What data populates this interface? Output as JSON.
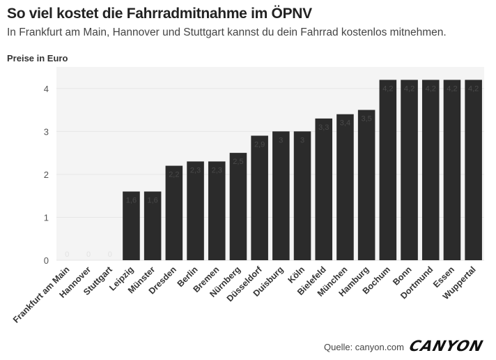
{
  "header": {
    "title": "So viel kostet die Fahrradmitnahme im ÖPNV",
    "subtitle": "In Frankfurt am Main, Hannover und Stuttgart kannst du dein Fahrrad kostenlos mitnehmen."
  },
  "footer": {
    "source": "Quelle: canyon.com",
    "logo_text": "CANYON"
  },
  "chart_data": {
    "type": "bar",
    "title": "So viel kostet die Fahrradmitnahme im ÖPNV",
    "ylabel": "Preise in Euro",
    "xlabel": "",
    "ylim": [
      0,
      4.5
    ],
    "yticks": [
      0,
      1,
      2,
      3,
      4
    ],
    "grid": true,
    "bar_color": "#2b2b2b",
    "background_color": "#f4f4f4",
    "categories": [
      "Frankfurt am Main",
      "Hannover",
      "Stuttgart",
      "Leipzig",
      "Münster",
      "Dresden",
      "Berlin",
      "Bremen",
      "Nürnberg",
      "Düsseldorf",
      "Duisburg",
      "Köln",
      "Bielefeld",
      "München",
      "Hamburg",
      "Bochum",
      "Bonn",
      "Dortmund",
      "Essen",
      "Wuppertal"
    ],
    "values": [
      0,
      0,
      0,
      1.6,
      1.6,
      2.2,
      2.3,
      2.3,
      2.5,
      2.9,
      3,
      3,
      3.3,
      3.4,
      3.5,
      4.2,
      4.2,
      4.2,
      4.2,
      4.2
    ],
    "data_labels": [
      "0",
      "0",
      "0",
      "1,6",
      "1,6",
      "2,2",
      "2,3",
      "2,3",
      "2,5",
      "2,9",
      "3",
      "3",
      "3,3",
      "3,4",
      "3,5",
      "4,2",
      "4,2",
      "4,2",
      "4,2",
      "4,2"
    ]
  }
}
